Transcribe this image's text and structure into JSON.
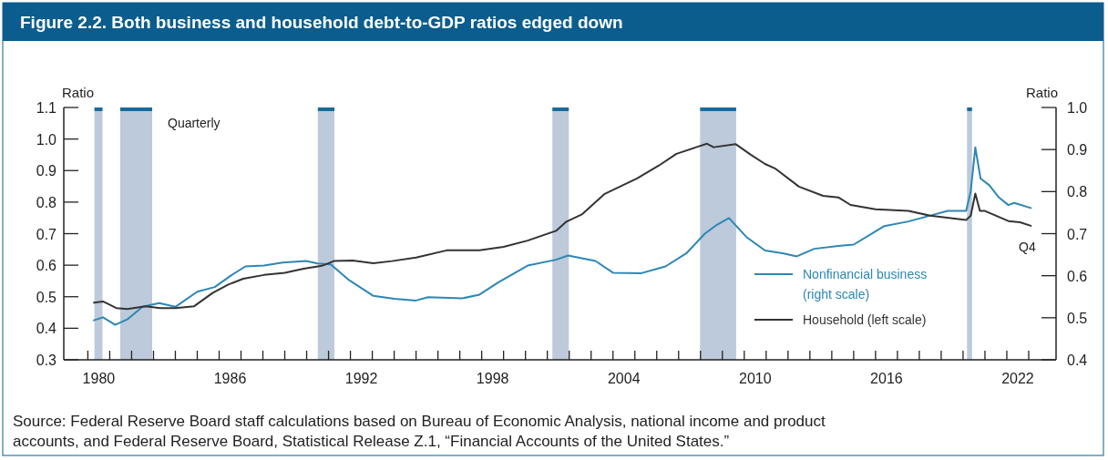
{
  "chart_data": {
    "type": "line",
    "title": "Figure 2.2. Both business and household debt-to-GDP ratios edged down",
    "ylabel": "Ratio",
    "y2label": "Ratio",
    "xlim": [
      1978.9,
      2024.25
    ],
    "ylim": [
      0.3,
      1.1
    ],
    "yticks": [
      0.3,
      {
        "value": 0.4,
        "label": "0.4"
      },
      0.5,
      0.6,
      0.7,
      0.8,
      0.9,
      {
        "value": 1.0,
        "label": "1.0"
      },
      1.1
    ],
    "y2lim": [
      0.4,
      1.0
    ],
    "y2ticks": [
      0.4,
      0.5,
      0.6,
      0.7,
      0.8,
      0.9,
      {
        "value": 1.0,
        "label": "1.0"
      }
    ],
    "xticks": [
      {
        "value": 1980,
        "label": null
      },
      {
        "value": 1981,
        "label": null
      },
      {
        "value": 1982,
        "label": null
      },
      {
        "value": 1983,
        "label": null
      },
      {
        "value": 1984,
        "label": null
      },
      {
        "value": 1985,
        "label": null
      },
      {
        "value": 1986,
        "label": null
      },
      {
        "value": 1987,
        "label": null
      },
      {
        "value": 1988,
        "label": null
      },
      {
        "value": 1989,
        "label": null
      },
      {
        "value": 1990,
        "label": null
      },
      {
        "value": 1991,
        "label": null
      },
      {
        "value": 1992,
        "label": null
      },
      {
        "value": 1993,
        "label": null
      },
      {
        "value": 1994,
        "label": null
      },
      {
        "value": 1995,
        "label": null
      },
      {
        "value": 1996,
        "label": null
      },
      {
        "value": 1997,
        "label": null
      },
      {
        "value": 1998,
        "label": null
      },
      {
        "value": 1999,
        "label": null
      },
      {
        "value": 2000,
        "label": null
      },
      {
        "value": 2001,
        "label": null
      },
      {
        "value": 2002,
        "label": null
      },
      {
        "value": 2003,
        "label": null
      },
      {
        "value": 2004,
        "label": null
      },
      {
        "value": 2005,
        "label": null
      },
      {
        "value": 2006,
        "label": null
      },
      {
        "value": 2007,
        "label": null
      },
      {
        "value": 2008,
        "label": null
      },
      {
        "value": 2009,
        "label": null
      },
      {
        "value": 2010,
        "label": null
      },
      {
        "value": 2011,
        "label": null
      },
      {
        "value": 2012,
        "label": null
      },
      {
        "value": 2013,
        "label": null
      },
      {
        "value": 2014,
        "label": null
      },
      {
        "value": 2015,
        "label": null
      },
      {
        "value": 2016,
        "label": null
      },
      {
        "value": 2017,
        "label": null
      },
      {
        "value": 2018,
        "label": null
      },
      {
        "value": 2019,
        "label": null
      },
      {
        "value": 2020,
        "label": null
      },
      {
        "value": 2021,
        "label": null
      },
      {
        "value": 2022,
        "label": null
      },
      {
        "value": 2023,
        "label": null
      },
      {
        "value": 1980.5,
        "label": "1980"
      },
      {
        "value": 1986.5,
        "label": "1986"
      },
      {
        "value": 1992.5,
        "label": "1992"
      },
      {
        "value": 1998.5,
        "label": "1998"
      },
      {
        "value": 2004.5,
        "label": "2004"
      },
      {
        "value": 2010.5,
        "label": "2010"
      },
      {
        "value": 2016.5,
        "label": "2016"
      },
      {
        "value": 2022.5,
        "label": "2022"
      }
    ],
    "grid": false,
    "legend": "bottom right",
    "line_style": "solid",
    "marker": "none",
    "bands": [
      {
        "axis": "x",
        "from": 1980.3,
        "to": 1980.67,
        "color": "#bccadb"
      },
      {
        "axis": "x",
        "from": 1981.48,
        "to": 1982.94,
        "color": "#bccadb"
      },
      {
        "axis": "x",
        "from": 1990.51,
        "to": 1991.27,
        "color": "#bccadb"
      },
      {
        "axis": "x",
        "from": 2001.23,
        "to": 2001.98,
        "color": "#bccadb"
      },
      {
        "axis": "x",
        "from": 2007.98,
        "to": 2009.63,
        "color": "#bccadb"
      },
      {
        "axis": "x",
        "from": 2020.18,
        "to": 2020.41,
        "color": "#bccadb"
      }
    ],
    "series": [
      {
        "name": "Nonfinancial business (right scale)",
        "color": "#2c87b5",
        "axis": "y2",
        "x": [
          1980.28,
          1980.69,
          1981.25,
          1981.8,
          1982.5,
          1983.26,
          1984.0,
          1985.0,
          1985.8,
          1986.5,
          1987.2,
          1988.05,
          1988.9,
          1989.97,
          1990.5,
          1991.1,
          1991.9,
          1993.05,
          1994.0,
          1995.0,
          1995.55,
          1997.1,
          1997.9,
          1998.75,
          2000.1,
          2001.4,
          2001.95,
          2003.2,
          2004.0,
          2005.3,
          2006.4,
          2007.35,
          2008.2,
          2008.75,
          2009.3,
          2010.1,
          2010.95,
          2011.8,
          2012.4,
          2013.2,
          2014.3,
          2015.0,
          2016.4,
          2017.5,
          2018.5,
          2019.3,
          2020.14,
          2020.35,
          2020.56,
          2020.8,
          2021.2,
          2021.64,
          2022.07,
          2022.34,
          2023.1
        ],
        "values": [
          0.494,
          0.501,
          0.483,
          0.496,
          0.526,
          0.535,
          0.526,
          0.562,
          0.573,
          0.599,
          0.622,
          0.624,
          0.631,
          0.635,
          0.629,
          0.627,
          0.591,
          0.552,
          0.545,
          0.541,
          0.549,
          0.546,
          0.555,
          0.584,
          0.624,
          0.638,
          0.648,
          0.635,
          0.607,
          0.606,
          0.622,
          0.653,
          0.7,
          0.721,
          0.737,
          0.692,
          0.66,
          0.653,
          0.646,
          0.664,
          0.671,
          0.674,
          0.718,
          0.729,
          0.743,
          0.754,
          0.754,
          0.801,
          0.905,
          0.831,
          0.815,
          0.786,
          0.768,
          0.773,
          0.761
        ]
      },
      {
        "name": "Household (left scale)",
        "color": "#333333",
        "x": [
          1980.28,
          1980.69,
          1981.3,
          1981.8,
          1982.64,
          1983.3,
          1984.0,
          1984.86,
          1985.7,
          1986.4,
          1987.1,
          1988.05,
          1989.0,
          1989.86,
          1990.7,
          1991.24,
          1992.1,
          1993.05,
          1993.9,
          1995.0,
          1996.4,
          1997.9,
          1999.0,
          2000.1,
          2001.4,
          2001.87,
          2002.6,
          2003.6,
          2005.1,
          2006.1,
          2006.9,
          2007.8,
          2008.3,
          2008.6,
          2009.6,
          2010.3,
          2010.95,
          2011.4,
          2012.5,
          2013.6,
          2014.3,
          2014.86,
          2016.0,
          2017.5,
          2018.5,
          2020.14,
          2020.35,
          2020.56,
          2020.77,
          2021.0,
          2022.07,
          2022.6,
          2023.1
        ],
        "values": [
          0.481,
          0.485,
          0.464,
          0.461,
          0.47,
          0.464,
          0.464,
          0.47,
          0.512,
          0.538,
          0.557,
          0.569,
          0.576,
          0.589,
          0.598,
          0.613,
          0.615,
          0.606,
          0.613,
          0.624,
          0.647,
          0.647,
          0.658,
          0.678,
          0.709,
          0.738,
          0.762,
          0.825,
          0.875,
          0.916,
          0.953,
          0.974,
          0.985,
          0.974,
          0.984,
          0.95,
          0.921,
          0.907,
          0.849,
          0.82,
          0.815,
          0.791,
          0.777,
          0.772,
          0.757,
          0.743,
          0.757,
          0.827,
          0.772,
          0.772,
          0.74,
          0.736,
          0.725
        ]
      }
    ],
    "annotations": [
      "Quarterly",
      {
        "text": "Q4",
        "x": 2023.1,
        "y": 0.725
      },
      "Source: Federal Reserve Board staff calculations based on Bureau of Economic Analysis, national income and product accounts, and Federal Reserve Board, Statistical Release Z.1, “Financial Accounts of the United States.”"
    ]
  }
}
